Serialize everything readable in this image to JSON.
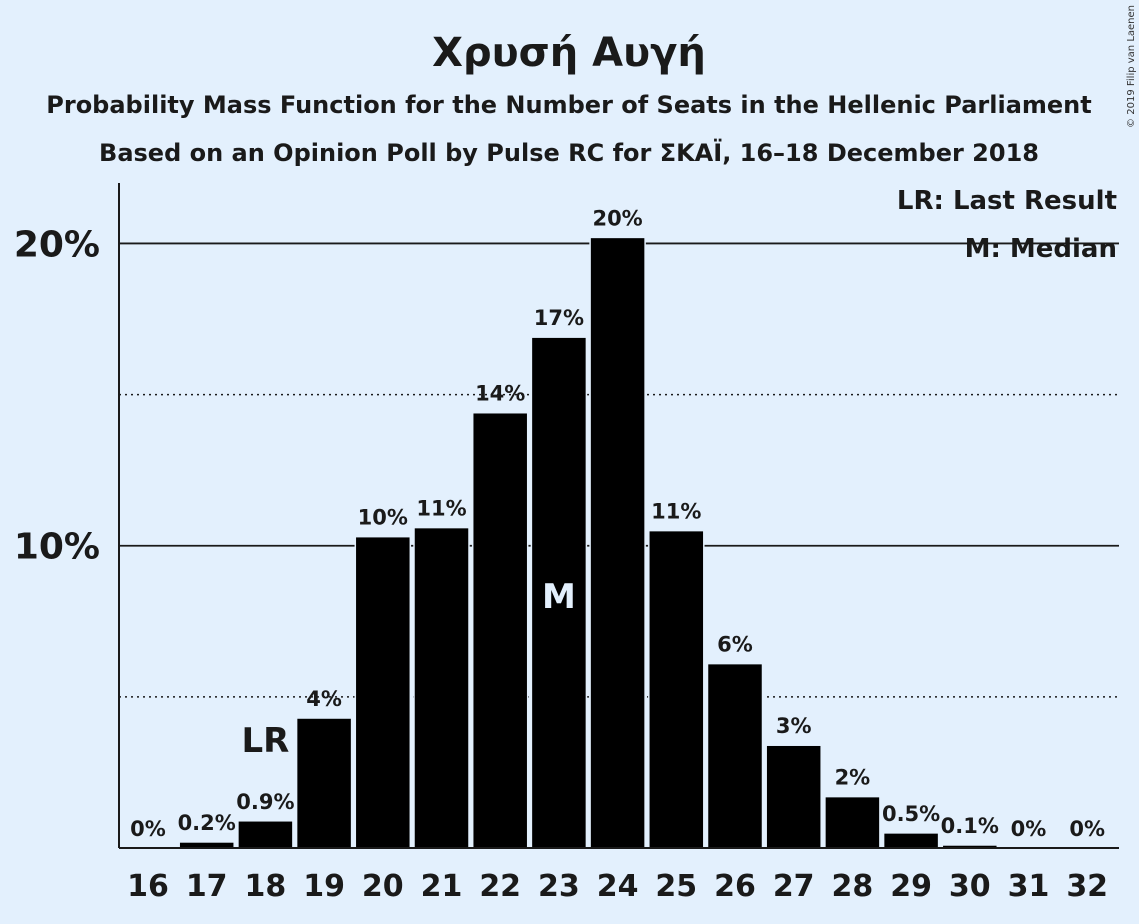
{
  "chart_data": {
    "type": "bar",
    "title": "Χρυσή Αυγή",
    "subtitle_lines": [
      "Probability Mass Function for the Number of Seats in the Hellenic Parliament",
      "Based on an Opinion Poll by Pulse RC for ΣΚΑΪ, 16–18 December 2018"
    ],
    "categories": [
      "16",
      "17",
      "18",
      "19",
      "20",
      "21",
      "22",
      "23",
      "24",
      "25",
      "26",
      "27",
      "28",
      "29",
      "30",
      "31",
      "32"
    ],
    "values": [
      0,
      0.2,
      0.9,
      4.3,
      10.3,
      10.6,
      14.4,
      16.9,
      20.2,
      10.5,
      6.1,
      3.4,
      1.7,
      0.5,
      0.1,
      0,
      0
    ],
    "value_labels": [
      "0%",
      "0.2%",
      "0.9%",
      "4%",
      "10%",
      "11%",
      "14%",
      "17%",
      "20%",
      "11%",
      "6%",
      "3%",
      "2%",
      "0.5%",
      "0.1%",
      "0%",
      "0%"
    ],
    "ylim": [
      0,
      22
    ],
    "yticks": [
      {
        "value": 10,
        "label": "10%"
      },
      {
        "value": 20,
        "label": "20%"
      }
    ],
    "dotted_gridlines": [
      5,
      15
    ],
    "grid": true,
    "bar_color": "#000000",
    "background_color": "#e3f0fd",
    "last_result": {
      "category": "18",
      "label": "LR"
    },
    "median": {
      "category": "23",
      "label": "M"
    },
    "legend": {
      "placement": "top-right",
      "entries": [
        "LR: Last Result",
        "M: Median"
      ]
    },
    "copyright": "© 2019 Filip van Laenen"
  }
}
